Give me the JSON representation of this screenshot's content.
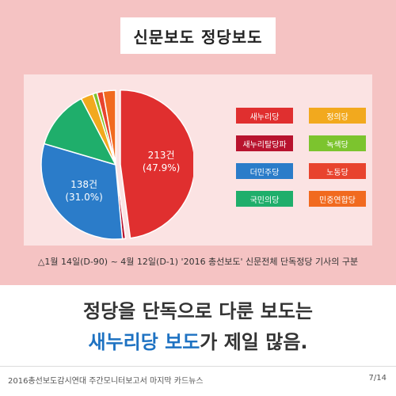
{
  "title": "신문보도 정당보도",
  "caption": "△1월 14일(D-90) ~ 4월 12일(D-1) '2016 총선보도' 신문전체 단독정당 기사의 구분",
  "headline": {
    "line1": "정당을 단독으로 다룬 보도는",
    "line2_highlight": "새누리당 보도",
    "line2_rest": "가 제일 많음."
  },
  "footer": {
    "left": "2016총선보도감시연대 주간모니터보고서 마지막 카드뉴스",
    "right": "7/14"
  },
  "colors": {
    "background_top": "#f5c3c3",
    "panel": "#fbe3e3",
    "highlight_text": "#1e72c2"
  },
  "chart_data": {
    "type": "pie",
    "slices": [
      {
        "label": "새누리당",
        "value": 213,
        "percent": 47.9,
        "color": "#e02f2f",
        "value_label": "213건",
        "percent_label": "(47.9%)"
      },
      {
        "label": "새누리탈당파",
        "value": 3,
        "percent": 0.7,
        "color": "#b8132e",
        "value_label": "",
        "percent_label": ""
      },
      {
        "label": "더민주당",
        "value": 138,
        "percent": 31.0,
        "color": "#2b7cc9",
        "value_label": "138건",
        "percent_label": "(31.0%)"
      },
      {
        "label": "국민의당",
        "value": 57,
        "percent": 12.8,
        "color": "#1fae6b",
        "value_label": "",
        "percent_label": ""
      },
      {
        "label": "정의당",
        "value": 12,
        "percent": 2.7,
        "color": "#f2a91e",
        "value_label": "",
        "percent_label": ""
      },
      {
        "label": "녹색당",
        "value": 4,
        "percent": 0.9,
        "color": "#7cc42e",
        "value_label": "",
        "percent_label": ""
      },
      {
        "label": "노동당",
        "value": 6,
        "percent": 1.3,
        "color": "#e8432e",
        "value_label": "",
        "percent_label": ""
      },
      {
        "label": "민중연합당",
        "value": 12,
        "percent": 2.7,
        "color": "#f16a1f",
        "value_label": "",
        "percent_label": ""
      }
    ],
    "legend": [
      {
        "label": "새누리당",
        "color": "#e02f2f"
      },
      {
        "label": "정의당",
        "color": "#f2a91e"
      },
      {
        "label": "새누리탈당파",
        "color": "#b8132e"
      },
      {
        "label": "녹색당",
        "color": "#7cc42e"
      },
      {
        "label": "더민주당",
        "color": "#2b7cc9"
      },
      {
        "label": "노동당",
        "color": "#e8432e"
      },
      {
        "label": "국민의당",
        "color": "#1fae6b"
      },
      {
        "label": "민중연합당",
        "color": "#f16a1f"
      }
    ]
  }
}
